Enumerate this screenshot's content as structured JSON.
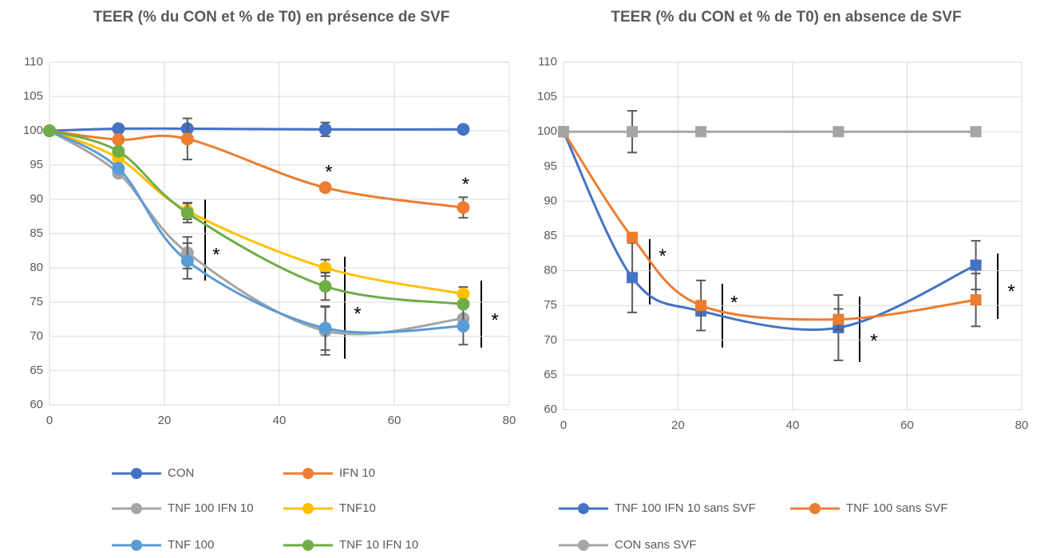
{
  "chart_data": [
    {
      "type": "line",
      "title": "TEER (% du CON et % de T0) en présence de SVF",
      "x": [
        0,
        12,
        24,
        48,
        72
      ],
      "xlim": [
        0,
        80
      ],
      "xticks": [
        0,
        20,
        40,
        60,
        80
      ],
      "ylim": [
        60,
        110
      ],
      "yticks": [
        60,
        65,
        70,
        75,
        80,
        85,
        90,
        95,
        100,
        105,
        110
      ],
      "grid": true,
      "smooth": true,
      "marker": "circle",
      "series": [
        {
          "name": "CON",
          "color": "#4472c4",
          "values": [
            100,
            100.3,
            100.3,
            100.2,
            100.2
          ],
          "errors": [
            null,
            null,
            null,
            1,
            null
          ]
        },
        {
          "name": "IFN 10",
          "color": "#ed7d31",
          "values": [
            100,
            98.7,
            98.8,
            91.7,
            88.8
          ],
          "errors": [
            null,
            null,
            3,
            null,
            1.5
          ]
        },
        {
          "name": "TNF 100 IFN 10",
          "color": "#a5a5a5",
          "values": [
            100,
            93.8,
            82.2,
            70.8,
            72.6
          ],
          "errors": [
            null,
            null,
            2.3,
            3.5,
            null
          ]
        },
        {
          "name": "TNF10",
          "color": "#ffc000",
          "values": [
            100,
            96,
            88.3,
            80,
            76.2
          ],
          "errors": [
            null,
            null,
            1.2,
            1.2,
            1
          ]
        },
        {
          "name": "TNF 100",
          "color": "#5b9bd5",
          "values": [
            100,
            94.5,
            81,
            71.2,
            71.5
          ],
          "errors": [
            null,
            null,
            2.6,
            3.2,
            2.7
          ]
        },
        {
          "name": "TNF 10 IFN 10",
          "color": "#70ad47",
          "values": [
            100,
            97,
            88,
            77.3,
            74.7
          ],
          "errors": [
            null,
            null,
            1.4,
            2,
            null
          ]
        }
      ],
      "annotations": [
        {
          "text": "*",
          "x": 48.6,
          "y": 94.4
        },
        {
          "text": "*",
          "x": 72.4,
          "y": 92.6
        },
        {
          "text": "*",
          "x": 29,
          "y": 82.3
        },
        {
          "text": "*",
          "x": 53.6,
          "y": 73.7
        },
        {
          "text": "*",
          "x": 77.5,
          "y": 72.8
        }
      ]
    },
    {
      "type": "line",
      "title": "TEER (% du CON et % de T0) en absence de SVF",
      "x": [
        0,
        12,
        24,
        48,
        72
      ],
      "xlim": [
        0,
        80
      ],
      "xticks": [
        0,
        20,
        40,
        60,
        80
      ],
      "ylim": [
        60,
        110
      ],
      "yticks": [
        60,
        65,
        70,
        75,
        80,
        85,
        90,
        95,
        100,
        105,
        110
      ],
      "grid": true,
      "smooth": true,
      "marker": "square",
      "series": [
        {
          "name": "TNF 100 IFN 10 sans SVF",
          "color": "#4472c4",
          "values": [
            100,
            79,
            74.2,
            71.8,
            80.8
          ],
          "errors": [
            null,
            5,
            null,
            4.7,
            3.5
          ]
        },
        {
          "name": "TNF 100 sans SVF",
          "color": "#ed7d31",
          "values": [
            100,
            84.8,
            75,
            73,
            75.8
          ],
          "errors": [
            null,
            null,
            3.6,
            1.5,
            3.8
          ]
        },
        {
          "name": "CON sans SVF",
          "color": "#a5a5a5",
          "values": [
            100,
            100,
            100,
            100,
            100
          ],
          "errors": [
            null,
            3,
            null,
            null,
            null
          ]
        }
      ],
      "annotations": [
        {
          "text": "*",
          "x": 17.3,
          "y": 82.5
        },
        {
          "text": "*",
          "x": 29.8,
          "y": 75.8
        },
        {
          "text": "*",
          "x": 54.2,
          "y": 70.3
        },
        {
          "text": "*",
          "x": 78.2,
          "y": 77.4
        }
      ]
    }
  ]
}
